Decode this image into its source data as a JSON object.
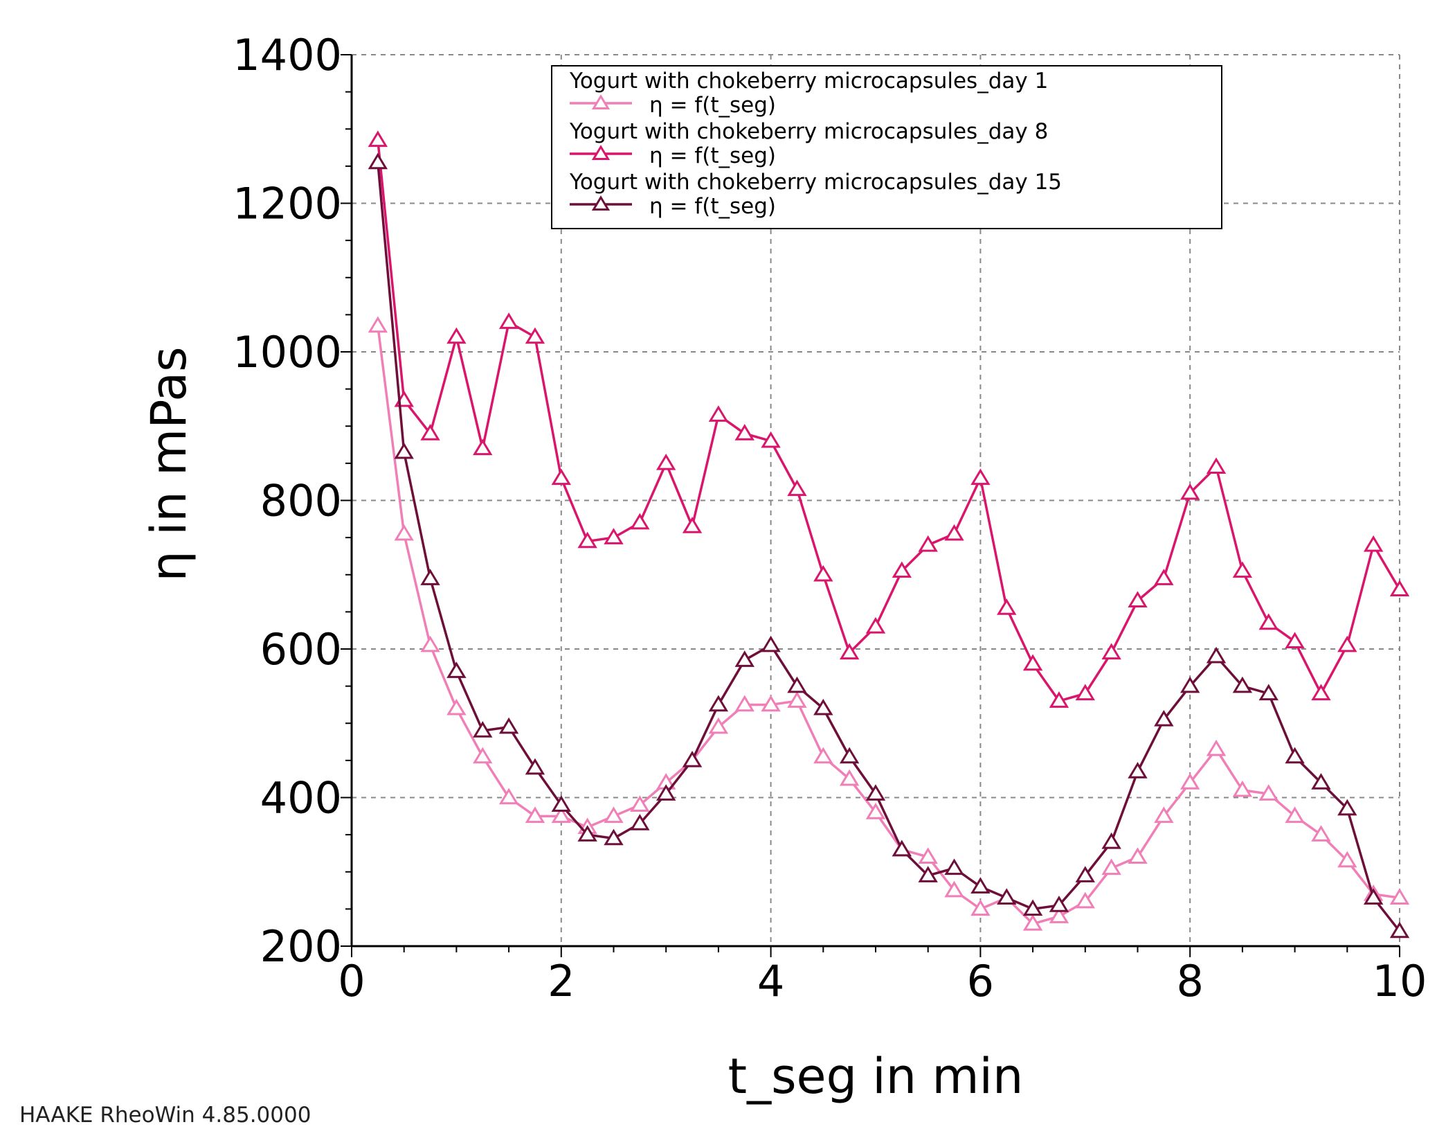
{
  "footer": "HAAKE RheoWin 4.85.0000",
  "chart_data": {
    "type": "line",
    "title": "",
    "xlabel": "t_seg in min",
    "ylabel": "η in mPas",
    "xlim": [
      0,
      10
    ],
    "ylim": [
      200,
      1400
    ],
    "xticks": [
      0,
      2,
      4,
      6,
      8,
      10
    ],
    "yticks": [
      200,
      400,
      600,
      800,
      1000,
      1200,
      1400
    ],
    "grid": true,
    "legend_position": "top-center",
    "x": [
      0.25,
      0.5,
      0.75,
      1.0,
      1.25,
      1.5,
      1.75,
      2.0,
      2.25,
      2.5,
      2.75,
      3.0,
      3.25,
      3.5,
      3.75,
      4.0,
      4.25,
      4.5,
      4.75,
      5.0,
      5.25,
      5.5,
      5.75,
      6.0,
      6.25,
      6.5,
      6.75,
      7.0,
      7.25,
      7.5,
      7.75,
      8.0,
      8.25,
      8.5,
      8.75,
      9.0,
      9.25,
      9.5,
      9.75,
      10.0
    ],
    "series": [
      {
        "name": "Yogurt with chokeberry microcapsules_day 1",
        "legend_label": "η = f(t_seg)",
        "color": "#f17fb7",
        "values": [
          1035,
          755,
          605,
          520,
          455,
          400,
          375,
          375,
          360,
          375,
          390,
          420,
          450,
          495,
          525,
          525,
          530,
          455,
          425,
          380,
          330,
          320,
          275,
          250,
          265,
          230,
          240,
          260,
          305,
          320,
          375,
          420,
          465,
          410,
          405,
          375,
          350,
          315,
          270,
          265
        ]
      },
      {
        "name": "Yogurt with chokeberry microcapsules_day 8",
        "legend_label": "η = f(t_seg)",
        "color": "#d9166b",
        "values": [
          1285,
          935,
          890,
          1020,
          870,
          1040,
          1020,
          830,
          745,
          750,
          770,
          850,
          765,
          915,
          890,
          880,
          815,
          700,
          595,
          630,
          705,
          740,
          755,
          830,
          655,
          580,
          530,
          540,
          595,
          665,
          695,
          810,
          845,
          705,
          635,
          610,
          540,
          605,
          740,
          680
        ]
      },
      {
        "name": "Yogurt with chokeberry microcapsules_day 15",
        "legend_label": "η = f(t_seg)",
        "color": "#6e0f3a",
        "values": [
          1255,
          865,
          695,
          570,
          490,
          495,
          440,
          390,
          350,
          345,
          365,
          405,
          450,
          525,
          585,
          605,
          550,
          520,
          455,
          405,
          330,
          295,
          305,
          280,
          265,
          250,
          255,
          295,
          340,
          435,
          505,
          550,
          590,
          550,
          540,
          455,
          420,
          385,
          265,
          220
        ]
      }
    ]
  }
}
